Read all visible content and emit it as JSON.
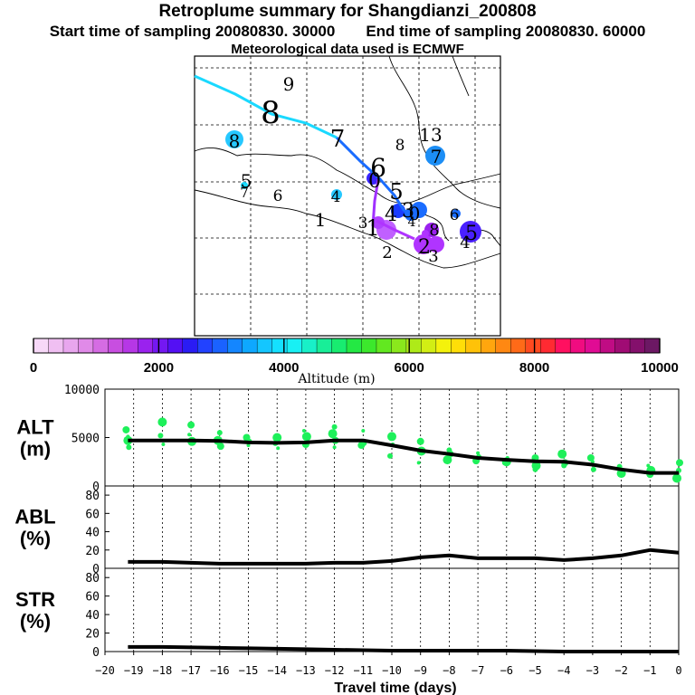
{
  "title": "Retroplume summary for Shangdianzi_200808",
  "subtitle_start": "Start time of sampling 20080830. 30000",
  "subtitle_end": "End time of sampling 20080830. 60000",
  "meteo_line": "Meteorological data used is ECMWF",
  "colorbar": {
    "label": "Altitude (m)",
    "tick_labels": [
      "0",
      "2000",
      "4000",
      "6000",
      "8000",
      "10000"
    ],
    "colors": [
      "#f7d8f8",
      "#f0bff2",
      "#e8a6ee",
      "#e08ae8",
      "#d56ce3",
      "#c84ee0",
      "#b637e6",
      "#9a22ee",
      "#7418f2",
      "#5410f4",
      "#2a1cf4",
      "#2242ff",
      "#1a62ff",
      "#1486ff",
      "#0ea8ff",
      "#14c6ff",
      "#14e0ff",
      "#18f0f4",
      "#18f0c8",
      "#18ee98",
      "#18ec70",
      "#24e844",
      "#3ce82c",
      "#62e820",
      "#8ae81c",
      "#aeea18",
      "#d2ee14",
      "#f4f20c",
      "#ffde08",
      "#ffc208",
      "#ffa60e",
      "#ff8812",
      "#ff6a18",
      "#ff4a20",
      "#ff2a32",
      "#ff1060",
      "#f00c80",
      "#e00c94",
      "#c00c84",
      "#a00c74",
      "#84106c",
      "#6c1864"
    ]
  },
  "map": {
    "digits": [
      {
        "t": "9",
        "c": "#1ad9ff"
      },
      {
        "t": "8",
        "c": "#2dc8ff"
      },
      {
        "t": "7",
        "c": "#1e8cff"
      },
      {
        "t": "8",
        "c": "#2c9bff"
      },
      {
        "t": "13",
        "c": "#1a9cff"
      },
      {
        "t": "7",
        "c": "#1e90ff"
      },
      {
        "t": "8",
        "c": "#2ec8ff"
      },
      {
        "t": "5",
        "c": "#1ac8ff"
      },
      {
        "t": "7",
        "c": "#1ac8ff"
      },
      {
        "t": "6",
        "c": "#26c8ff"
      },
      {
        "t": "4",
        "c": "#26c8ff"
      },
      {
        "t": "1",
        "c": "#26c8ff"
      },
      {
        "t": "6",
        "c": "#3226ff"
      },
      {
        "t": "0",
        "c": "#3a26ff"
      },
      {
        "t": "5",
        "c": "#3a40ff"
      },
      {
        "t": "4",
        "c": "#5a40ff"
      },
      {
        "t": "3",
        "c": "#1a6cff"
      },
      {
        "t": "6",
        "c": "#1a6cff"
      },
      {
        "t": "3",
        "c": "#c060ff"
      },
      {
        "t": "1",
        "c": "#c060ff"
      },
      {
        "t": "0",
        "c": "#c060ff"
      },
      {
        "t": "4",
        "c": "#3a26ff"
      },
      {
        "t": "2",
        "c": "#b034ff"
      },
      {
        "t": "8",
        "c": "#b034ff"
      },
      {
        "t": "2",
        "c": "#b034ff"
      },
      {
        "t": "3",
        "c": "#b034ff"
      },
      {
        "t": "5",
        "c": "#4a20ff"
      },
      {
        "t": "4",
        "c": "#4a20ff"
      }
    ]
  },
  "chart_data": [
    {
      "type": "line",
      "panel": "ALT",
      "ylabel_line1": "ALT",
      "ylabel_line2": "(m)",
      "ylim": [
        0,
        10000
      ],
      "yticks": [
        "10000",
        "5000",
        "0"
      ],
      "x": [
        -19.2,
        -18,
        -17,
        -16,
        -15,
        -14,
        -13,
        -12,
        -11,
        -10,
        -9,
        -8,
        -7,
        -6,
        -5,
        -4,
        -3,
        -2,
        -1,
        0
      ],
      "series": [
        {
          "name": "mean altitude",
          "values": [
            4700,
            4700,
            4700,
            4650,
            4500,
            4450,
            4500,
            4700,
            4700,
            4200,
            3650,
            3300,
            2900,
            2700,
            2550,
            2500,
            2200,
            1700,
            1350,
            1350
          ]
        }
      ],
      "scatter_values": [
        [
          5100,
          4000,
          5800,
          4700
        ],
        [
          6600,
          4300,
          5200
        ],
        [
          6300,
          4600,
          5300
        ],
        [
          5500,
          4100,
          4700
        ],
        [
          4200,
          4600,
          5000
        ],
        [
          5000,
          3900,
          4400
        ],
        [
          4300,
          5100,
          5700
        ],
        [
          6100,
          4700,
          5400,
          4000
        ],
        [
          5700,
          4400,
          4200
        ],
        [
          5100,
          4300,
          3100
        ],
        [
          4600,
          3600,
          2400
        ],
        [
          3700,
          3300,
          2700
        ],
        [
          3400,
          3000,
          2600
        ],
        [
          2500,
          2900,
          2400
        ],
        [
          2900,
          2100,
          2700,
          1700
        ],
        [
          2100,
          2400,
          3300
        ],
        [
          2500,
          1700,
          2900
        ],
        [
          1300,
          1700,
          2000
        ],
        [
          1200,
          1600,
          2100
        ],
        [
          1600,
          2400,
          800
        ]
      ]
    },
    {
      "type": "line",
      "panel": "ABL",
      "ylabel_line1": "ABL",
      "ylabel_line2": "(%)",
      "ylim": [
        0,
        90
      ],
      "yticks": [
        "80",
        "60",
        "40",
        "20",
        "0"
      ],
      "x": [
        -19.2,
        -18,
        -17,
        -16,
        -15,
        -14,
        -13,
        -12,
        -11,
        -10,
        -9,
        -8,
        -7,
        -6,
        -5,
        -4,
        -3,
        -2,
        -1,
        0
      ],
      "series": [
        {
          "name": "ABL fraction",
          "values": [
            7,
            7,
            6,
            5,
            5,
            5,
            5,
            6,
            6,
            8,
            12,
            14,
            11,
            11,
            11,
            9,
            11,
            14,
            20,
            17
          ]
        }
      ]
    },
    {
      "type": "line",
      "panel": "STR",
      "ylabel_line1": "STR",
      "ylabel_line2": "(%)",
      "ylim": [
        0,
        90
      ],
      "yticks": [
        "80",
        "60",
        "40",
        "20",
        "0"
      ],
      "x": [
        -19.2,
        -18,
        -17,
        -16,
        -15,
        -14,
        -13,
        -12,
        -11,
        -10,
        -9,
        -8,
        -7,
        -6,
        -5,
        -4,
        -3,
        -2,
        -1,
        0
      ],
      "series": [
        {
          "name": "STR fraction",
          "values": [
            5,
            5,
            4.5,
            4,
            3.5,
            3,
            2.5,
            2,
            1.5,
            1,
            1,
            1,
            1,
            1,
            0.5,
            0,
            0,
            0,
            0,
            0
          ]
        }
      ],
      "xlabel": "Travel time (days)",
      "xticks": [
        "−20",
        "−19",
        "−18",
        "−17",
        "−16",
        "−15",
        "−14",
        "−13",
        "−12",
        "−11",
        "−10",
        "−9",
        "−8",
        "−7",
        "−6",
        "−5",
        "−4",
        "−3",
        "−2",
        "−1",
        "0"
      ]
    }
  ]
}
